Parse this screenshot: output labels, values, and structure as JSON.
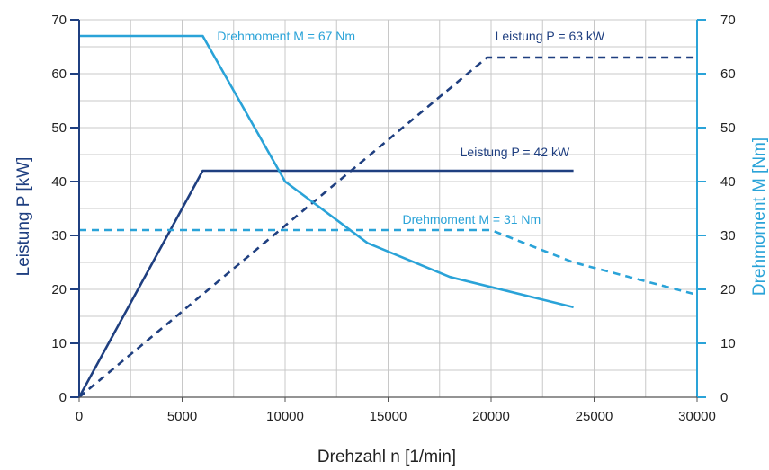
{
  "chart_data": {
    "type": "line",
    "xlabel": "Drehzahl n [1/min]",
    "ylabel_left": "Leistung P [kW]",
    "ylabel_right": "Drehmoment M [Nm]",
    "xlim": [
      0,
      30000
    ],
    "ylim_left": [
      0,
      70
    ],
    "ylim_right": [
      0,
      70
    ],
    "x_ticks": [
      0,
      5000,
      10000,
      15000,
      20000,
      25000,
      30000
    ],
    "x_tick_labels": [
      "0",
      "5000",
      "10000",
      "15000",
      "20000",
      "25000",
      "30000"
    ],
    "y_ticks": [
      0,
      10,
      20,
      30,
      40,
      50,
      60,
      70
    ],
    "y_tick_labels": [
      "0",
      "10",
      "20",
      "30",
      "40",
      "50",
      "60",
      "70"
    ],
    "grid": true,
    "colors": {
      "power": "#1f3f80",
      "torque": "#2aa3d8",
      "left_axis": "#1f3f80",
      "right_axis": "#2aa3d8",
      "grid": "#c8c8c8"
    },
    "series": [
      {
        "key": "p42",
        "axis": "left",
        "color_key": "power",
        "dashed": false,
        "x": [
          0,
          6000,
          24000
        ],
        "y": [
          0,
          42,
          42
        ]
      },
      {
        "key": "p63",
        "axis": "left",
        "color_key": "power",
        "dashed": true,
        "x": [
          0,
          19800,
          30000
        ],
        "y": [
          0,
          63,
          63
        ]
      },
      {
        "key": "m67",
        "axis": "right",
        "color_key": "torque",
        "dashed": false,
        "x": [
          0,
          6000,
          10000,
          14000,
          18000,
          24000
        ],
        "y": [
          67,
          67,
          40,
          28.6,
          22.3,
          16.7
        ]
      },
      {
        "key": "m31",
        "axis": "right",
        "color_key": "torque",
        "dashed": true,
        "x": [
          0,
          20000,
          24000,
          30000
        ],
        "y": [
          31,
          31,
          25,
          19
        ]
      }
    ],
    "annotations": [
      {
        "text": "Drehmoment M = 67 Nm",
        "x": 6700,
        "y": 67,
        "color_key": "torque"
      },
      {
        "text": "Leistung P = 63 kW",
        "x": 20200,
        "y": 67,
        "color_key": "power"
      },
      {
        "text": "Leistung P = 42 kW",
        "x": 18500,
        "y": 45.5,
        "color_key": "power"
      },
      {
        "text": "Drehmoment M = 31 Nm",
        "x": 15700,
        "y": 33,
        "color_key": "torque"
      }
    ]
  }
}
